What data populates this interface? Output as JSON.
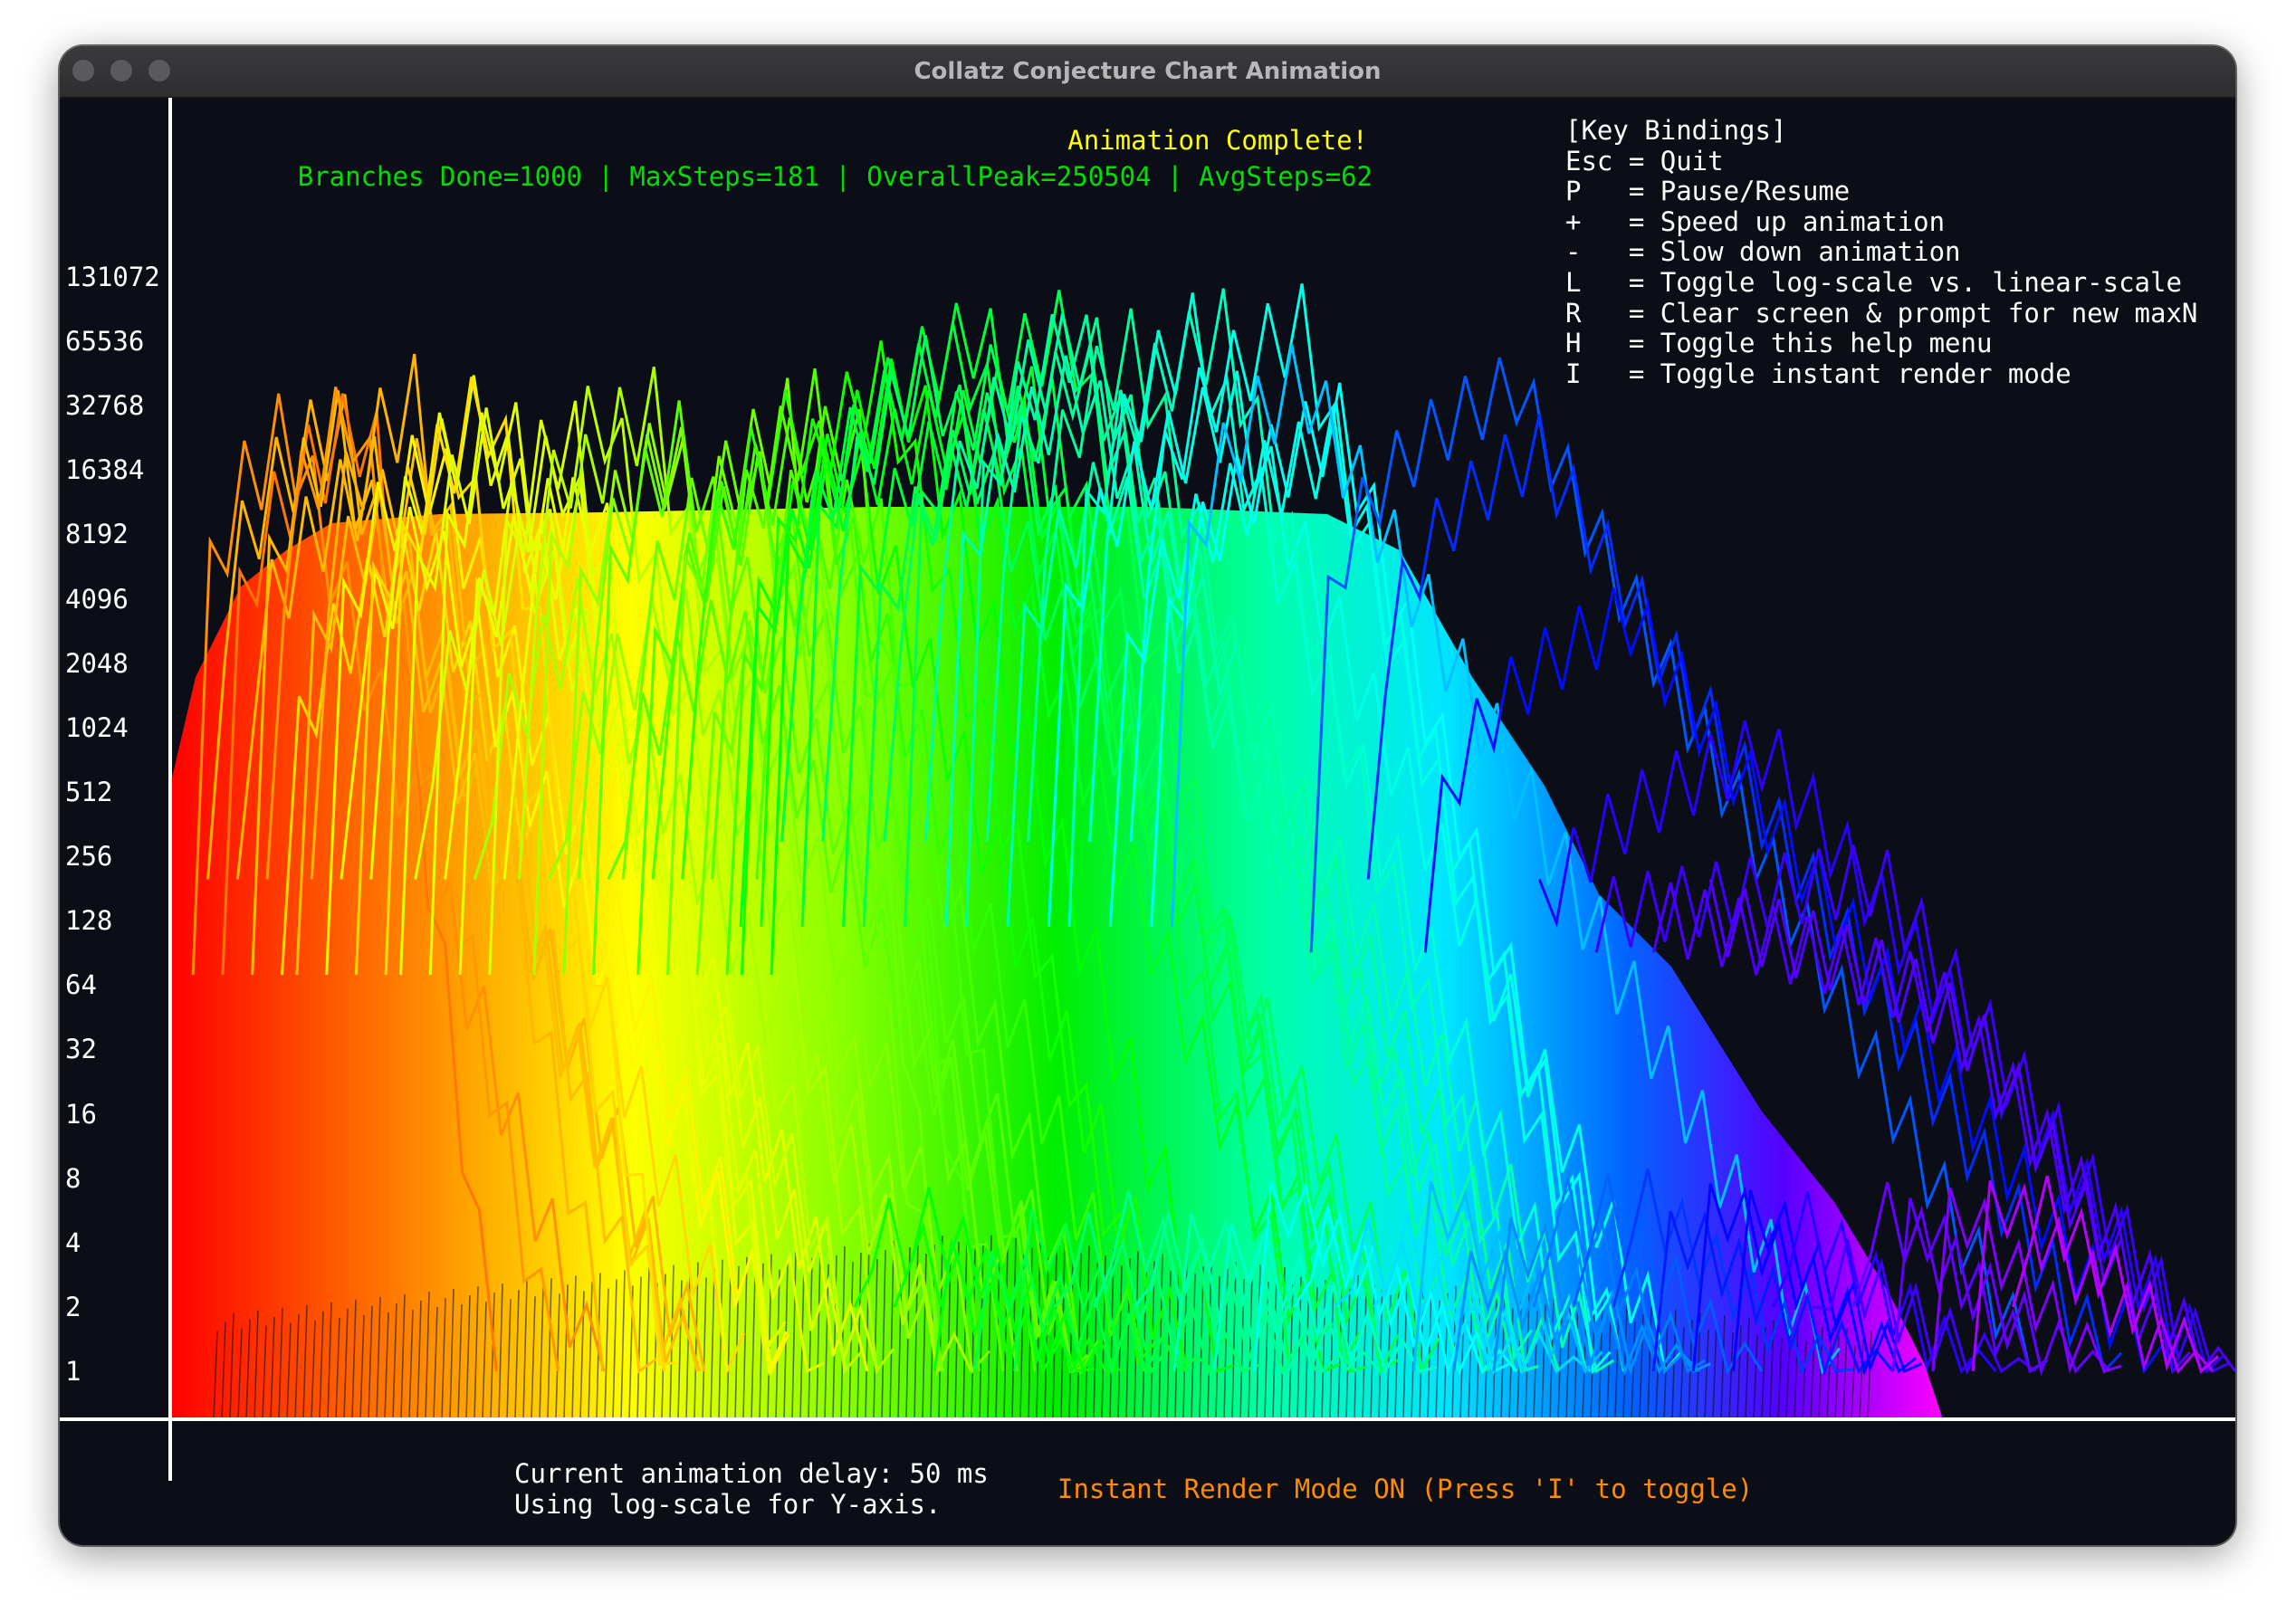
{
  "window": {
    "title": "Collatz Conjecture Chart Animation"
  },
  "header": {
    "animation_status": "Animation Complete!",
    "stats": "Branches Done=1000 | MaxSteps=181 | OverallPeak=250504 | AvgSteps=62"
  },
  "help": {
    "title": "[Key Bindings]",
    "items": [
      "Esc = Quit",
      "P   = Pause/Resume",
      "+   = Speed up animation",
      "-   = Slow down animation",
      "L   = Toggle log-scale vs. linear-scale",
      "R   = Clear screen & prompt for new maxN",
      "H   = Toggle this help menu",
      "I   = Toggle instant render mode"
    ]
  },
  "footer": {
    "delay": "Current animation delay: 50 ms",
    "scale": "Using log-scale for Y-axis.",
    "instant_mode": "Instant Render Mode ON (Press 'I' to toggle)"
  },
  "colors": {
    "background": "#0b0d17",
    "axis": "#ffffff",
    "status": "#ffff00",
    "stats": "#00dd00",
    "instant_mode": "#ff8c00"
  },
  "chart_data": {
    "type": "line",
    "title": "",
    "xlabel": "",
    "ylabel": "",
    "y_scale": "log2",
    "y_ticks": [
      "131072",
      "65536",
      "32768",
      "16384",
      "8192",
      "4096",
      "2048",
      "1024",
      "512",
      "256",
      "128",
      "64",
      "32",
      "16",
      "8",
      "4",
      "2",
      "1"
    ],
    "xlim": [
      0,
      181
    ],
    "ylim": [
      1,
      250504
    ],
    "grid": false,
    "color_scheme": "rainbow hue by step index (red to magenta)",
    "series_summary": {
      "branches": 1000,
      "max_steps": 181,
      "overall_peak": 250504,
      "avg_steps": 62
    }
  }
}
